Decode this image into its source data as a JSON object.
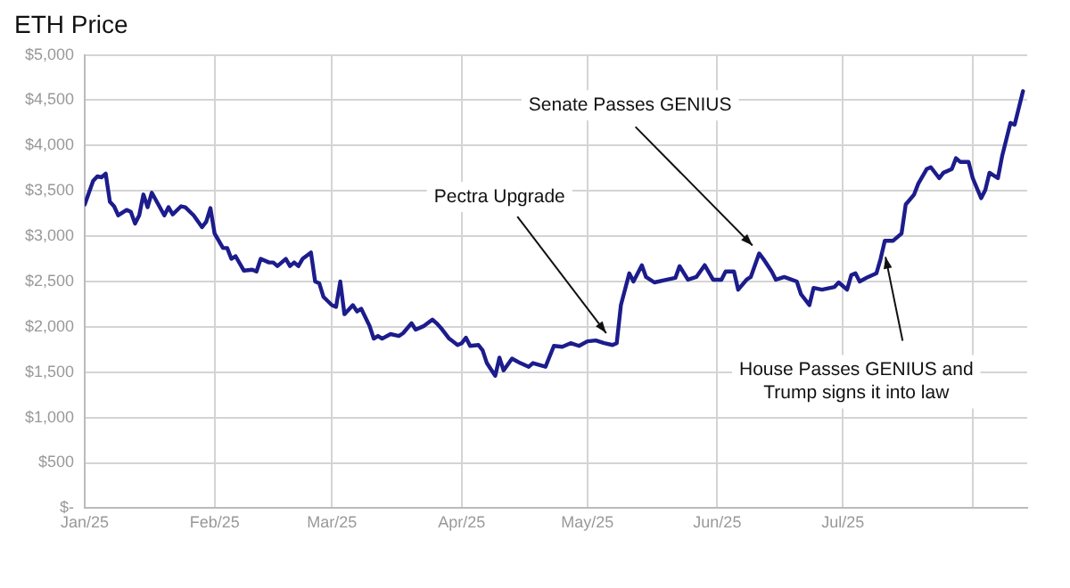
{
  "chart_data": {
    "type": "line",
    "title": "ETH Price",
    "x": [
      "2025-01-01",
      "2025-01-02",
      "2025-01-03",
      "2025-01-04",
      "2025-01-05",
      "2025-01-06",
      "2025-01-07",
      "2025-01-08",
      "2025-01-09",
      "2025-01-11",
      "2025-01-12",
      "2025-01-13",
      "2025-01-14",
      "2025-01-15",
      "2025-01-16",
      "2025-01-17",
      "2025-01-20",
      "2025-01-21",
      "2025-01-22",
      "2025-01-24",
      "2025-01-25",
      "2025-01-27",
      "2025-01-29",
      "2025-01-30",
      "2025-01-31",
      "2025-02-01",
      "2025-02-03",
      "2025-02-04",
      "2025-02-05",
      "2025-02-06",
      "2025-02-08",
      "2025-02-10",
      "2025-02-11",
      "2025-02-12",
      "2025-02-14",
      "2025-02-15",
      "2025-02-16",
      "2025-02-18",
      "2025-02-19",
      "2025-02-20",
      "2025-02-21",
      "2025-02-22",
      "2025-02-24",
      "2025-02-25",
      "2025-02-26",
      "2025-02-27",
      "2025-03-01",
      "2025-03-02",
      "2025-03-03",
      "2025-03-04",
      "2025-03-06",
      "2025-03-07",
      "2025-03-08",
      "2025-03-10",
      "2025-03-11",
      "2025-03-12",
      "2025-03-13",
      "2025-03-15",
      "2025-03-17",
      "2025-03-18",
      "2025-03-20",
      "2025-03-21",
      "2025-03-23",
      "2025-03-25",
      "2025-03-26",
      "2025-03-27",
      "2025-03-29",
      "2025-03-31",
      "2025-04-01",
      "2025-04-02",
      "2025-04-03",
      "2025-04-05",
      "2025-04-06",
      "2025-04-07",
      "2025-04-08",
      "2025-04-09",
      "2025-04-10",
      "2025-04-11",
      "2025-04-13",
      "2025-04-15",
      "2025-04-17",
      "2025-04-18",
      "2025-04-21",
      "2025-04-23",
      "2025-04-25",
      "2025-04-27",
      "2025-04-29",
      "2025-05-01",
      "2025-05-03",
      "2025-05-05",
      "2025-05-07",
      "2025-05-08",
      "2025-05-09",
      "2025-05-11",
      "2025-05-12",
      "2025-05-14",
      "2025-05-15",
      "2025-05-17",
      "2025-05-20",
      "2025-05-22",
      "2025-05-23",
      "2025-05-25",
      "2025-05-27",
      "2025-05-29",
      "2025-05-31",
      "2025-06-02",
      "2025-06-03",
      "2025-06-05",
      "2025-06-06",
      "2025-06-08",
      "2025-06-09",
      "2025-06-11",
      "2025-06-12",
      "2025-06-14",
      "2025-06-15",
      "2025-06-17",
      "2025-06-20",
      "2025-06-21",
      "2025-06-23",
      "2025-06-24",
      "2025-06-26",
      "2025-06-29",
      "2025-06-30",
      "2025-07-02",
      "2025-07-03",
      "2025-07-04",
      "2025-07-05",
      "2025-07-07",
      "2025-07-09",
      "2025-07-10",
      "2025-07-11",
      "2025-07-13",
      "2025-07-15",
      "2025-07-16",
      "2025-07-18",
      "2025-07-19",
      "2025-07-21",
      "2025-07-22",
      "2025-07-24",
      "2025-07-25",
      "2025-07-27",
      "2025-07-28",
      "2025-07-29",
      "2025-07-31",
      "2025-08-01",
      "2025-08-03",
      "2025-08-04",
      "2025-08-05",
      "2025-08-07",
      "2025-08-08",
      "2025-08-10",
      "2025-08-11",
      "2025-08-13"
    ],
    "series": [
      {
        "color": "#1c1c8c",
        "values": [
          3350,
          3480,
          3610,
          3660,
          3650,
          3690,
          3380,
          3330,
          3230,
          3290,
          3270,
          3140,
          3230,
          3460,
          3320,
          3480,
          3230,
          3320,
          3240,
          3330,
          3320,
          3230,
          3100,
          3160,
          3310,
          3030,
          2870,
          2870,
          2750,
          2780,
          2620,
          2630,
          2610,
          2750,
          2710,
          2710,
          2670,
          2750,
          2670,
          2710,
          2670,
          2750,
          2820,
          2500,
          2480,
          2330,
          2240,
          2220,
          2500,
          2140,
          2240,
          2170,
          2200,
          2010,
          1870,
          1900,
          1870,
          1920,
          1900,
          1930,
          2040,
          1970,
          2010,
          2080,
          2040,
          1990,
          1870,
          1800,
          1820,
          1880,
          1790,
          1800,
          1740,
          1600,
          1530,
          1460,
          1660,
          1520,
          1650,
          1600,
          1560,
          1600,
          1560,
          1790,
          1780,
          1820,
          1790,
          1840,
          1850,
          1820,
          1800,
          1820,
          2240,
          2590,
          2500,
          2680,
          2550,
          2490,
          2520,
          2540,
          2670,
          2520,
          2550,
          2680,
          2520,
          2520,
          2610,
          2610,
          2410,
          2520,
          2550,
          2810,
          2750,
          2610,
          2520,
          2550,
          2500,
          2360,
          2240,
          2430,
          2410,
          2440,
          2490,
          2410,
          2570,
          2590,
          2500,
          2550,
          2590,
          2750,
          2950,
          2950,
          3030,
          3350,
          3460,
          3580,
          3740,
          3760,
          3640,
          3700,
          3740,
          3860,
          3820,
          3820,
          3640,
          3420,
          3510,
          3700,
          3640,
          3880,
          4250,
          4230,
          4600
        ]
      }
    ],
    "xlim": [
      "2025-01-01",
      "2025-08-14"
    ],
    "xticks": [
      {
        "value": "2025-01-01",
        "label": "Jan/25"
      },
      {
        "value": "2025-02-01",
        "label": "Feb/25"
      },
      {
        "value": "2025-03-01",
        "label": "Mar/25"
      },
      {
        "value": "2025-04-01",
        "label": "Apr/25"
      },
      {
        "value": "2025-05-01",
        "label": "May/25"
      },
      {
        "value": "2025-06-01",
        "label": "Jun/25"
      },
      {
        "value": "2025-07-01",
        "label": "Jul/25"
      },
      {
        "value": "2025-08-01",
        "label": null
      }
    ],
    "ylim": [
      0,
      5000
    ],
    "yticks": [
      {
        "value": 0,
        "label": "$-"
      },
      {
        "value": 500,
        "label": "$500"
      },
      {
        "value": 1000,
        "label": "$1,000"
      },
      {
        "value": 1500,
        "label": "$1,500"
      },
      {
        "value": 2000,
        "label": "$2,000"
      },
      {
        "value": 2500,
        "label": "$2,500"
      },
      {
        "value": 3000,
        "label": "$3,000"
      },
      {
        "value": 3500,
        "label": "$3,500"
      },
      {
        "value": 4000,
        "label": "$4,000"
      },
      {
        "value": 4500,
        "label": "$4,500"
      },
      {
        "value": 5000,
        "label": "$5,000"
      }
    ],
    "grid": true,
    "marker": "none",
    "annotations": [
      {
        "text": "Pectra Upgrade",
        "x": "2025-05-06",
        "y": 1900
      },
      {
        "text": "Senate Passes GENIUS",
        "x": "2025-06-10",
        "y": 2870
      },
      {
        "text": "House Passes GENIUS and Trump signs it into law",
        "x": "2025-07-11",
        "y": 2810
      }
    ]
  }
}
